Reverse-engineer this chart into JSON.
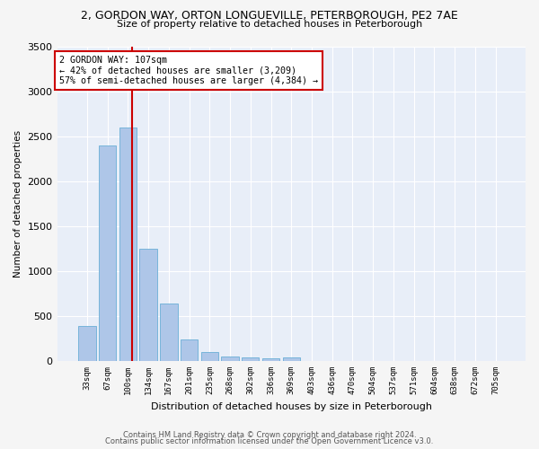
{
  "title_line1": "2, GORDON WAY, ORTON LONGUEVILLE, PETERBOROUGH, PE2 7AE",
  "title_line2": "Size of property relative to detached houses in Peterborough",
  "xlabel": "Distribution of detached houses by size in Peterborough",
  "ylabel": "Number of detached properties",
  "categories": [
    "33sqm",
    "67sqm",
    "100sqm",
    "134sqm",
    "167sqm",
    "201sqm",
    "235sqm",
    "268sqm",
    "302sqm",
    "336sqm",
    "369sqm",
    "403sqm",
    "436sqm",
    "470sqm",
    "504sqm",
    "537sqm",
    "571sqm",
    "604sqm",
    "638sqm",
    "672sqm",
    "705sqm"
  ],
  "values": [
    390,
    2400,
    2600,
    1250,
    640,
    245,
    105,
    55,
    45,
    30,
    45,
    0,
    0,
    0,
    0,
    0,
    0,
    0,
    0,
    0,
    0
  ],
  "bar_color": "#aec6e8",
  "bar_edge_color": "#6aaed6",
  "annotation_text": "2 GORDON WAY: 107sqm\n← 42% of detached houses are smaller (3,209)\n57% of semi-detached houses are larger (4,384) →",
  "annotation_box_color": "#ffffff",
  "annotation_box_edge_color": "#cc0000",
  "vline_color": "#cc0000",
  "ylim": [
    0,
    3500
  ],
  "yticks": [
    0,
    500,
    1000,
    1500,
    2000,
    2500,
    3000,
    3500
  ],
  "bg_color": "#e8eef8",
  "fig_bg_color": "#f5f5f5",
  "footer_line1": "Contains HM Land Registry data © Crown copyright and database right 2024.",
  "footer_line2": "Contains public sector information licensed under the Open Government Licence v3.0."
}
